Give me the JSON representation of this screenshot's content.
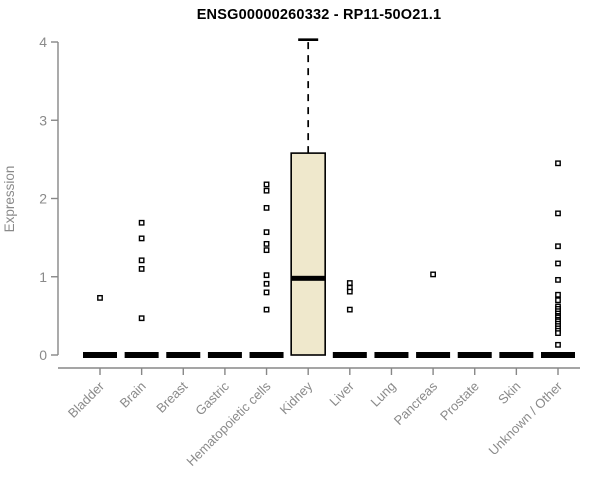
{
  "chart_data": {
    "type": "boxplot",
    "title": "ENSG00000260332 - RP11-50O21.1",
    "ylabel": "Expression",
    "xlabel": "",
    "ylim": [
      0,
      4
    ],
    "yticks": [
      0,
      1,
      2,
      3,
      4
    ],
    "grid": false,
    "legend": null,
    "categories": [
      "Bladder",
      "Brain",
      "Breast",
      "Gastric",
      "Hematopoietic cells",
      "Kidney",
      "Liver",
      "Lung",
      "Pancreas",
      "Prostate",
      "Skin",
      "Unknown / Other"
    ],
    "boxes": [
      {
        "category": "Bladder",
        "q1": 0,
        "median": 0,
        "q3": 0,
        "whisker_low": 0,
        "whisker_high": 0,
        "outliers": [
          0.73
        ]
      },
      {
        "category": "Brain",
        "q1": 0,
        "median": 0,
        "q3": 0,
        "whisker_low": 0,
        "whisker_high": 0,
        "outliers": [
          1.69,
          1.49,
          1.21,
          1.1,
          0.47
        ]
      },
      {
        "category": "Breast",
        "q1": 0,
        "median": 0,
        "q3": 0,
        "whisker_low": 0,
        "whisker_high": 0,
        "outliers": []
      },
      {
        "category": "Gastric",
        "q1": 0,
        "median": 0,
        "q3": 0,
        "whisker_low": 0,
        "whisker_high": 0,
        "outliers": []
      },
      {
        "category": "Hematopoietic cells",
        "q1": 0,
        "median": 0,
        "q3": 0,
        "whisker_low": 0,
        "whisker_high": 0,
        "outliers": [
          2.18,
          2.1,
          1.88,
          1.57,
          1.42,
          1.34,
          1.02,
          0.91,
          0.8,
          0.58
        ]
      },
      {
        "category": "Kidney",
        "q1": 0,
        "median": 0.98,
        "q3": 2.58,
        "whisker_low": 0,
        "whisker_high": 4.03,
        "outliers": []
      },
      {
        "category": "Liver",
        "q1": 0,
        "median": 0,
        "q3": 0,
        "whisker_low": 0,
        "whisker_high": 0,
        "outliers": [
          0.92,
          0.86,
          0.81,
          0.58
        ]
      },
      {
        "category": "Lung",
        "q1": 0,
        "median": 0,
        "q3": 0,
        "whisker_low": 0,
        "whisker_high": 0,
        "outliers": []
      },
      {
        "category": "Pancreas",
        "q1": 0,
        "median": 0,
        "q3": 0,
        "whisker_low": 0,
        "whisker_high": 0,
        "outliers": [
          1.03
        ]
      },
      {
        "category": "Prostate",
        "q1": 0,
        "median": 0,
        "q3": 0,
        "whisker_low": 0,
        "whisker_high": 0,
        "outliers": []
      },
      {
        "category": "Skin",
        "q1": 0,
        "median": 0,
        "q3": 0,
        "whisker_low": 0,
        "whisker_high": 0,
        "outliers": []
      },
      {
        "category": "Unknown / Other",
        "q1": 0,
        "median": 0,
        "q3": 0,
        "whisker_low": 0,
        "whisker_high": 0,
        "outliers": [
          2.45,
          1.81,
          1.39,
          1.17,
          0.96,
          0.77,
          0.7,
          0.62,
          0.59,
          0.56,
          0.53,
          0.5,
          0.48,
          0.45,
          0.43,
          0.4,
          0.37,
          0.34,
          0.31,
          0.28,
          0.13
        ]
      }
    ],
    "colors": {
      "box_fill": "#efe8cc",
      "box_border": "#000000",
      "median": "#000000",
      "whisker": "#000000",
      "outlier_stroke": "#000000",
      "outlier_fill": "#ffffff",
      "axis": "#878787",
      "tick_label": "#8a8a8a",
      "title": "#000000"
    }
  }
}
